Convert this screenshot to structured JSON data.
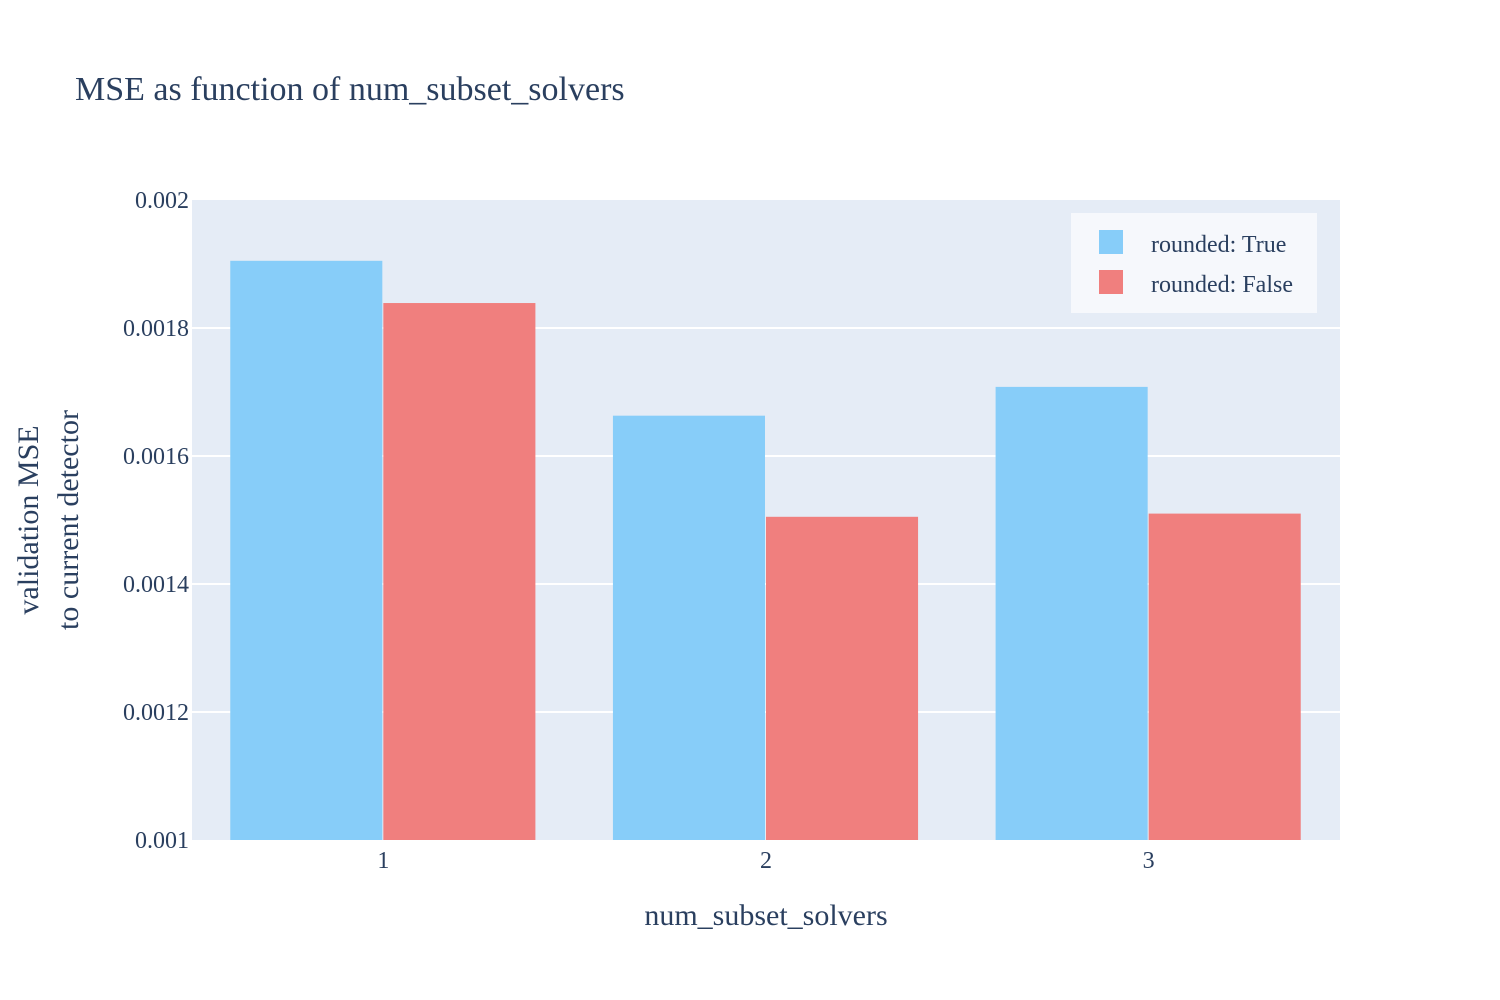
{
  "chart_data": {
    "type": "bar",
    "title": "MSE as function of num_subset_solvers",
    "xlabel": "num_subset_solvers",
    "ylabel_lines": [
      "validation MSE",
      "to current detector"
    ],
    "categories": [
      "1",
      "2",
      "3"
    ],
    "series": [
      {
        "name": "rounded: True",
        "color": "#87cdf9",
        "values": [
          0.001905,
          0.001663,
          0.001708
        ]
      },
      {
        "name": "rounded: False",
        "color": "#f07f7e",
        "values": [
          0.001839,
          0.001505,
          0.00151
        ]
      }
    ],
    "ylim": [
      0.001,
      0.002
    ],
    "yticks": [
      "0.001",
      "0.0012",
      "0.0014",
      "0.0016",
      "0.0018",
      "0.002"
    ],
    "ytick_values": [
      0.001,
      0.0012,
      0.0014,
      0.0016,
      0.0018,
      0.002
    ],
    "grid": true,
    "legend_position": "top-right",
    "plot_bg": "#e5ecf6",
    "legend_bg": "#f6f8fc"
  }
}
